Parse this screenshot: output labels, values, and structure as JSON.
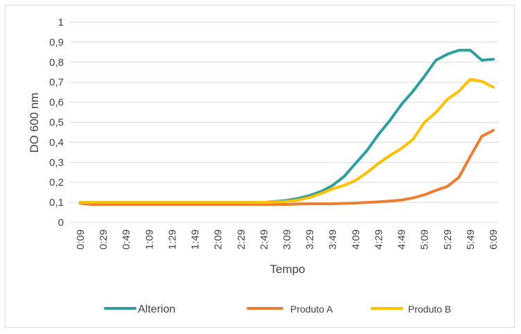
{
  "chart_data": {
    "type": "line",
    "xlabel": "Tempo",
    "ylabel": "DO 600 nm",
    "ylim": [
      0,
      1
    ],
    "y_ticks": [
      "0",
      "0,1",
      "0,2",
      "0,3",
      "0,4",
      "0,5",
      "0,6",
      "0,7",
      "0,8",
      "0,9",
      "1"
    ],
    "grid": true,
    "legend_position": "bottom",
    "categories": [
      "0:09",
      "0:19",
      "0:29",
      "0:39",
      "0:49",
      "0:59",
      "1:09",
      "1:19",
      "1:29",
      "1:39",
      "1:49",
      "1:59",
      "2:09",
      "2:19",
      "2:29",
      "2:39",
      "2:49",
      "2:59",
      "3:09",
      "3:19",
      "3:29",
      "3:39",
      "3:49",
      "3:59",
      "4:09",
      "4:19",
      "4:29",
      "4:39",
      "4:49",
      "4:59",
      "5:09",
      "5:19",
      "5:29",
      "5:39",
      "5:49",
      "5:59",
      "6:09"
    ],
    "x_tick_labels": [
      "0:09",
      "0:29",
      "0:49",
      "1:09",
      "1:29",
      "1:49",
      "2:09",
      "2:29",
      "2:49",
      "3:09",
      "3:29",
      "3:49",
      "4:09",
      "4:29",
      "4:49",
      "5:09",
      "5:29",
      "5:49",
      "6:09"
    ],
    "series": [
      {
        "name": "Alterion",
        "color": "#2e9e9e",
        "values": [
          0.1,
          0.1,
          0.1,
          0.1,
          0.1,
          0.1,
          0.1,
          0.1,
          0.1,
          0.1,
          0.1,
          0.1,
          0.1,
          0.1,
          0.1,
          0.1,
          0.1,
          0.105,
          0.11,
          0.12,
          0.135,
          0.155,
          0.185,
          0.23,
          0.295,
          0.36,
          0.44,
          0.51,
          0.59,
          0.655,
          0.73,
          0.81,
          0.84,
          0.86,
          0.86,
          0.81,
          0.815
        ]
      },
      {
        "name": "Produto A",
        "color": "#ed7d31",
        "values": [
          0.095,
          0.09,
          0.09,
          0.09,
          0.09,
          0.09,
          0.09,
          0.09,
          0.09,
          0.09,
          0.09,
          0.09,
          0.09,
          0.09,
          0.09,
          0.09,
          0.09,
          0.09,
          0.09,
          0.092,
          0.093,
          0.093,
          0.093,
          0.095,
          0.097,
          0.1,
          0.103,
          0.107,
          0.112,
          0.122,
          0.138,
          0.16,
          0.18,
          0.225,
          0.33,
          0.43,
          0.46
        ]
      },
      {
        "name": "Produto B",
        "color": "#ffc000",
        "values": [
          0.1,
          0.1,
          0.1,
          0.1,
          0.1,
          0.1,
          0.1,
          0.1,
          0.1,
          0.1,
          0.1,
          0.1,
          0.1,
          0.1,
          0.1,
          0.1,
          0.1,
          0.102,
          0.105,
          0.112,
          0.125,
          0.145,
          0.168,
          0.185,
          0.21,
          0.25,
          0.295,
          0.335,
          0.37,
          0.415,
          0.5,
          0.55,
          0.615,
          0.655,
          0.715,
          0.705,
          0.675
        ]
      }
    ]
  }
}
